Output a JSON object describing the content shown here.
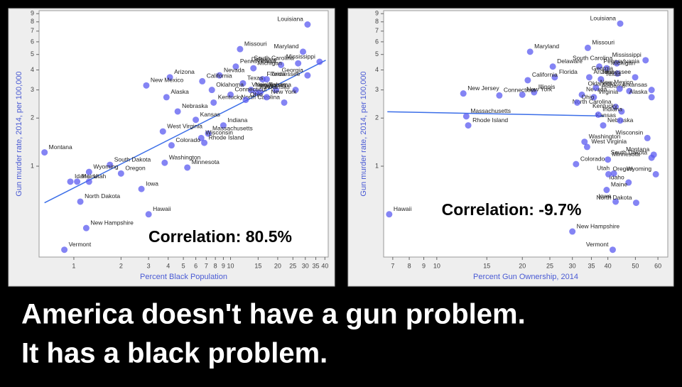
{
  "chart_data": [
    {
      "type": "scatter",
      "xlabel": "Percent Black Population",
      "ylabel": "Gun murder rate, 2014, per 100,000",
      "annotation": "Correlation: 80.5%",
      "log_x": true,
      "log_y": true,
      "color": "#5b5bf0",
      "trend_color": "#3b6ee8",
      "xlim": [
        0.6,
        42
      ],
      "ylim": [
        0.27,
        9.4
      ],
      "xticks": [
        1,
        2,
        3,
        4,
        5,
        6,
        7,
        8,
        9,
        10,
        15,
        20,
        25,
        30,
        35,
        40
      ],
      "yticks": [
        1,
        2,
        3,
        4,
        5,
        6,
        7,
        8,
        9
      ],
      "labels": [
        "Louisiana",
        "Maryland",
        "Mississippi",
        "South Carolina",
        "Missouri",
        "Delaware",
        "Pennsylvania",
        "Michigan",
        "Nevada",
        "Georgia",
        "Alabama",
        "Tennessee",
        "Florida",
        "Virginia",
        "North Carolina",
        "Arkansas",
        "Illinois",
        "New York",
        "New Jersey",
        "Texas",
        "California",
        "Arizona",
        "New Mexico",
        "Oklahoma",
        "Connecticut",
        "Alaska",
        "Kentucky",
        "Ohio",
        "Nebraska",
        "Kansas",
        "Indiana",
        "Massachusetts",
        "West Virginia",
        "Wisconsin",
        "Rhode Island",
        "Colorado",
        "Montana",
        "South Dakota",
        "Wyoming",
        "Washington",
        "Minnesota",
        "Idaho",
        "Maine",
        "Utah",
        "Oregon",
        "Iowa",
        "Hawaii",
        "North Dakota",
        "New Hampshire",
        "Vermont"
      ],
      "x": [
        31,
        29,
        37,
        27,
        11.5,
        21,
        10.8,
        14,
        8.5,
        31,
        26,
        17,
        16,
        19.5,
        22,
        15.5,
        14.5,
        17,
        13.5,
        12,
        6.6,
        4.1,
        2.9,
        7.6,
        10,
        3.9,
        7.8,
        12.5,
        4.6,
        6,
        9,
        7.2,
        3.7,
        6.5,
        6.8,
        4.2,
        0.65,
        1.7,
        1.25,
        3.8,
        5.3,
        0.95,
        1.05,
        1.25,
        2,
        2.7,
        3,
        1.1,
        1.2,
        0.87
      ],
      "values": [
        7.7,
        5.2,
        4.5,
        4.4,
        5.4,
        4.3,
        4.2,
        4.1,
        3.7,
        3.7,
        3.0,
        3.5,
        3.5,
        3.0,
        2.5,
        2.9,
        2.9,
        2.7,
        3.0,
        3.3,
        3.4,
        3.6,
        3.2,
        3.0,
        2.8,
        2.7,
        2.5,
        2.6,
        2.2,
        1.95,
        1.8,
        1.6,
        1.65,
        1.5,
        1.4,
        1.35,
        1.22,
        1.02,
        0.92,
        1.05,
        0.98,
        0.8,
        0.8,
        0.8,
        0.9,
        0.72,
        0.5,
        0.6,
        0.41,
        0.3
      ],
      "trend_line": {
        "x": [
          0.65,
          40.5
        ],
        "values": [
          0.59,
          4.6
        ]
      }
    },
    {
      "type": "scatter",
      "xlabel": "Percent Gun Ownership, 2014",
      "ylabel": "Gun murder rate, 2014, per 100,000",
      "annotation": "Correlation: -9.7%",
      "log_x": true,
      "log_y": true,
      "color": "#5b5bf0",
      "trend_color": "#3b6ee8",
      "xlim": [
        6.5,
        65
      ],
      "ylim": [
        0.27,
        9.4
      ],
      "xticks": [
        7,
        8,
        9,
        10,
        15,
        20,
        25,
        30,
        35,
        40,
        50,
        60
      ],
      "yticks": [
        1,
        2,
        3,
        4,
        5,
        6,
        7,
        8,
        9
      ],
      "labels": [
        "Louisiana",
        "Maryland",
        "Mississippi",
        "South Carolina",
        "Missouri",
        "Delaware",
        "Pennsylvania",
        "Michigan",
        "Nevada",
        "Georgia",
        "Alabama",
        "Tennessee",
        "Florida",
        "Virginia",
        "North Carolina",
        "Arkansas",
        "Illinois",
        "New York",
        "New Jersey",
        "Texas",
        "California",
        "Arizona",
        "New Mexico",
        "Oklahoma",
        "Connecticut",
        "Alaska",
        "Kentucky",
        "Ohio",
        "Nebraska",
        "Kansas",
        "Indiana",
        "Massachusetts",
        "West Virginia",
        "Wisconsin",
        "Rhode Island",
        "Colorado",
        "Montana",
        "South Dakota",
        "Wyoming",
        "Washington",
        "Minnesota",
        "Idaho",
        "Maine",
        "Utah",
        "Oregon",
        "Iowa",
        "Hawaii",
        "North Dakota",
        "New Hampshire",
        "Vermont"
      ],
      "x": [
        44.2,
        21.3,
        54.3,
        43,
        34,
        25.6,
        37.3,
        39.6,
        32.4,
        43.2,
        47.6,
        49.9,
        26,
        35.7,
        42.6,
        57,
        22,
        20,
        12.4,
        37.8,
        20.9,
        34.4,
        36.3,
        44,
        16.6,
        57,
        44.7,
        31.2,
        38.5,
        44.2,
        37,
        12.7,
        33.8,
        55.1,
        12.9,
        30.9,
        58,
        57,
        59,
        33.1,
        40,
        47.3,
        39.6,
        42,
        40.2,
        42.6,
        6.8,
        50.3,
        30,
        41.6
      ],
      "values": [
        7.8,
        5.2,
        4.6,
        4.4,
        5.5,
        4.2,
        4.2,
        4.1,
        2.8,
        3.8,
        2.95,
        3.6,
        3.6,
        2.7,
        2.35,
        3.0,
        2.9,
        2.8,
        2.85,
        3.5,
        3.45,
        3.6,
        3.1,
        3.05,
        2.77,
        2.7,
        2.2,
        2.5,
        1.8,
        1.93,
        2.1,
        2.05,
        1.32,
        1.5,
        1.8,
        1.03,
        1.18,
        1.13,
        0.89,
        1.42,
        1.1,
        0.79,
        0.71,
        0.9,
        0.89,
        0.6,
        0.5,
        0.59,
        0.39,
        0.3
      ],
      "trend_line": {
        "x": [
          6.7,
          38.9
        ],
        "values": [
          2.19,
          2.06
        ]
      }
    }
  ],
  "caption": [
    "America doesn't have a gun problem.",
    "It has a black problem."
  ]
}
